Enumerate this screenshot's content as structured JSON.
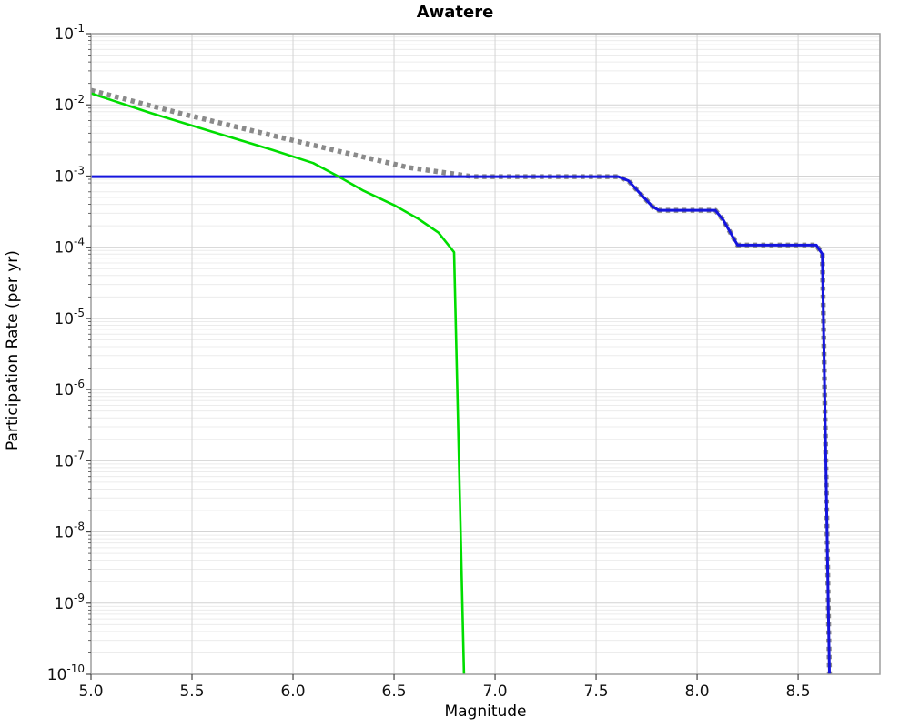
{
  "chart_data": {
    "type": "line",
    "title": "Awatere",
    "xlabel": "Magnitude",
    "ylabel": "Participation Rate (per yr)",
    "xlim": [
      5.0,
      8.905
    ],
    "ylim": [
      1e-10,
      0.1
    ],
    "xticks": [
      5.0,
      5.5,
      6.0,
      6.5,
      7.0,
      7.5,
      8.0,
      8.5
    ],
    "yticks_exp": [
      -1,
      -2,
      -3,
      -4,
      -5,
      -6,
      -7,
      -8,
      -9,
      -10
    ],
    "grid": "major and minor log gridlines on, legend off",
    "colors": {
      "major_grid": "#d4d4d4",
      "minor_grid": "#ececec",
      "frame": "#9e9e9e",
      "tick": "#444444",
      "green": "#00dd00",
      "gray": "#8a8a8a",
      "blue": "#1515dd"
    },
    "series": [
      {
        "name": "gray-dotted-curve",
        "color": "#8a8a8a",
        "style": "dotted",
        "width": 5.5,
        "points": [
          [
            5.0,
            0.016
          ],
          [
            5.45,
            0.0075
          ],
          [
            5.9,
            0.0037
          ],
          [
            6.26,
            0.00212
          ],
          [
            6.57,
            0.00132
          ],
          [
            6.89,
            0.00098
          ],
          [
            7.61,
            0.00098
          ],
          [
            7.66,
            0.00086
          ],
          [
            7.72,
            0.00056
          ],
          [
            7.78,
            0.00037
          ],
          [
            7.81,
            0.00033
          ],
          [
            8.09,
            0.00033
          ],
          [
            8.13,
            0.00024
          ],
          [
            8.2,
            0.000107
          ],
          [
            8.59,
            0.000107
          ],
          [
            8.62,
            8e-05
          ],
          [
            8.655,
            1e-10
          ]
        ]
      },
      {
        "name": "blue-curve",
        "color": "#1515dd",
        "style": "solid",
        "width": 3,
        "points": [
          [
            5.0,
            0.00098
          ],
          [
            7.61,
            0.00098
          ],
          [
            7.66,
            0.00086
          ],
          [
            7.72,
            0.00056
          ],
          [
            7.78,
            0.00037
          ],
          [
            7.81,
            0.00033
          ],
          [
            8.09,
            0.00033
          ],
          [
            8.13,
            0.00024
          ],
          [
            8.2,
            0.000107
          ],
          [
            8.59,
            0.000107
          ],
          [
            8.62,
            8e-05
          ],
          [
            8.655,
            1e-10
          ]
        ]
      },
      {
        "name": "green-curve",
        "color": "#00dd00",
        "style": "solid",
        "width": 2.6,
        "points": [
          [
            5.0,
            0.0145
          ],
          [
            5.3,
            0.0076
          ],
          [
            5.6,
            0.0042
          ],
          [
            5.9,
            0.00232
          ],
          [
            6.1,
            0.00152
          ],
          [
            6.22,
            0.001
          ],
          [
            6.35,
            0.00062
          ],
          [
            6.5,
            0.00039
          ],
          [
            6.62,
            0.00025
          ],
          [
            6.72,
            0.00016
          ],
          [
            6.797,
            8.5e-05
          ],
          [
            6.846,
            1e-10
          ]
        ]
      }
    ]
  }
}
